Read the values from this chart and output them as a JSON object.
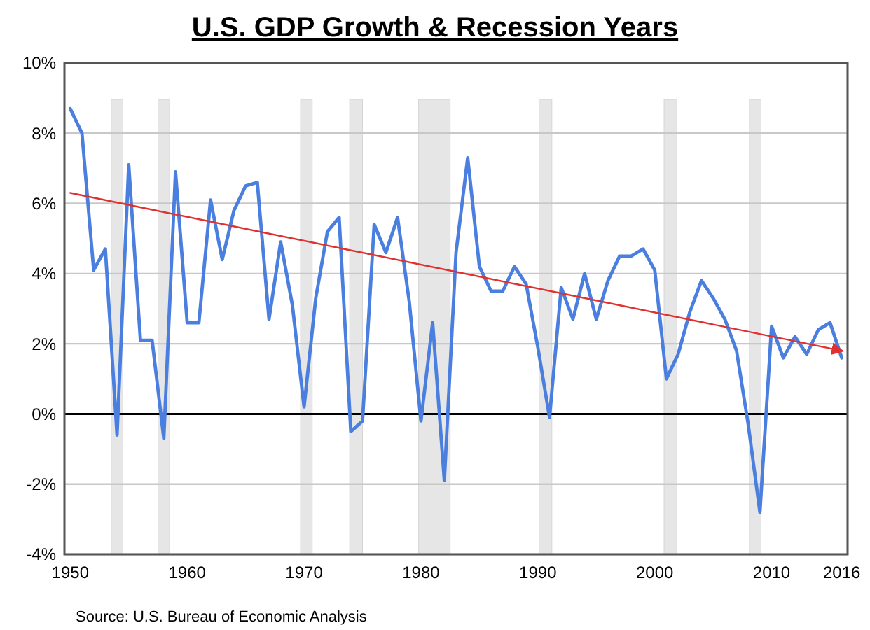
{
  "chart_data": {
    "type": "line",
    "title": "U.S. GDP Growth & Recession Years",
    "annotations": [
      "Source: U.S. Bureau of Economic Analysis"
    ],
    "x": [
      1950,
      1951,
      1952,
      1953,
      1954,
      1955,
      1956,
      1957,
      1958,
      1959,
      1960,
      1961,
      1962,
      1963,
      1964,
      1965,
      1966,
      1967,
      1968,
      1969,
      1970,
      1971,
      1972,
      1973,
      1974,
      1975,
      1976,
      1977,
      1978,
      1979,
      1980,
      1981,
      1982,
      1983,
      1984,
      1985,
      1986,
      1987,
      1988,
      1989,
      1990,
      1991,
      1992,
      1993,
      1994,
      1995,
      1996,
      1997,
      1998,
      1999,
      2000,
      2001,
      2002,
      2003,
      2004,
      2005,
      2006,
      2007,
      2008,
      2009,
      2010,
      2011,
      2012,
      2013,
      2014,
      2015,
      2016
    ],
    "series": [
      {
        "color": "#4a7fe0",
        "values": [
          8.7,
          8.0,
          4.1,
          4.7,
          -0.6,
          7.1,
          2.1,
          2.1,
          -0.7,
          6.9,
          2.6,
          2.6,
          6.1,
          4.4,
          5.8,
          6.5,
          6.6,
          2.7,
          4.9,
          3.1,
          0.2,
          3.3,
          5.2,
          5.6,
          -0.5,
          -0.2,
          5.4,
          4.6,
          5.6,
          3.2,
          -0.2,
          2.6,
          -1.9,
          4.6,
          7.3,
          4.2,
          3.5,
          3.5,
          4.2,
          3.7,
          1.9,
          -0.1,
          3.6,
          2.7,
          4.0,
          2.7,
          3.8,
          4.5,
          4.5,
          4.7,
          4.1,
          1.0,
          1.7,
          2.9,
          3.8,
          3.3,
          2.7,
          1.8,
          -0.3,
          -2.8,
          2.5,
          1.6,
          2.2,
          1.7,
          2.4,
          2.6,
          1.6
        ]
      },
      {
        "color": "#e03030",
        "x": [
          1950,
          2016
        ],
        "values": [
          6.3,
          1.8
        ]
      }
    ],
    "xlim": [
      1949.5,
      2016.5
    ],
    "xticks": [
      1950,
      1960,
      1970,
      1980,
      1990,
      2000,
      2010,
      2016
    ],
    "ylim": [
      -4,
      10
    ],
    "yticks": [
      {
        "value": -4,
        "label": "-4%"
      },
      {
        "value": -2,
        "label": "-2%"
      },
      {
        "value": 0,
        "label": "0%"
      },
      {
        "value": 2,
        "label": "2%"
      },
      {
        "value": 4,
        "label": "4%"
      },
      {
        "value": 6,
        "label": "6%"
      },
      {
        "value": 8,
        "label": "8%"
      },
      {
        "value": 10,
        "label": "10%"
      }
    ],
    "grid": "y",
    "ref_lines": [
      {
        "axis": "y",
        "value": 0,
        "color": "#000000"
      }
    ],
    "bands": [
      {
        "axis": "x",
        "from": 1953.5,
        "to": 1954.5,
        "color": "#e6e6e6"
      },
      {
        "axis": "x",
        "from": 1957.5,
        "to": 1958.5,
        "color": "#e6e6e6"
      },
      {
        "axis": "x",
        "from": 1969.7,
        "to": 1970.7,
        "color": "#e6e6e6"
      },
      {
        "axis": "x",
        "from": 1973.9,
        "to": 1975,
        "color": "#e6e6e6"
      },
      {
        "axis": "x",
        "from": 1979.8,
        "to": 1982.5,
        "color": "#e6e6e6"
      },
      {
        "axis": "x",
        "from": 1990.1,
        "to": 1991.2,
        "color": "#e6e6e6"
      },
      {
        "axis": "x",
        "from": 2000.8,
        "to": 2001.9,
        "color": "#e6e6e6"
      },
      {
        "axis": "x",
        "from": 2008.1,
        "to": 2009.1,
        "color": "#e6e6e6"
      }
    ]
  }
}
